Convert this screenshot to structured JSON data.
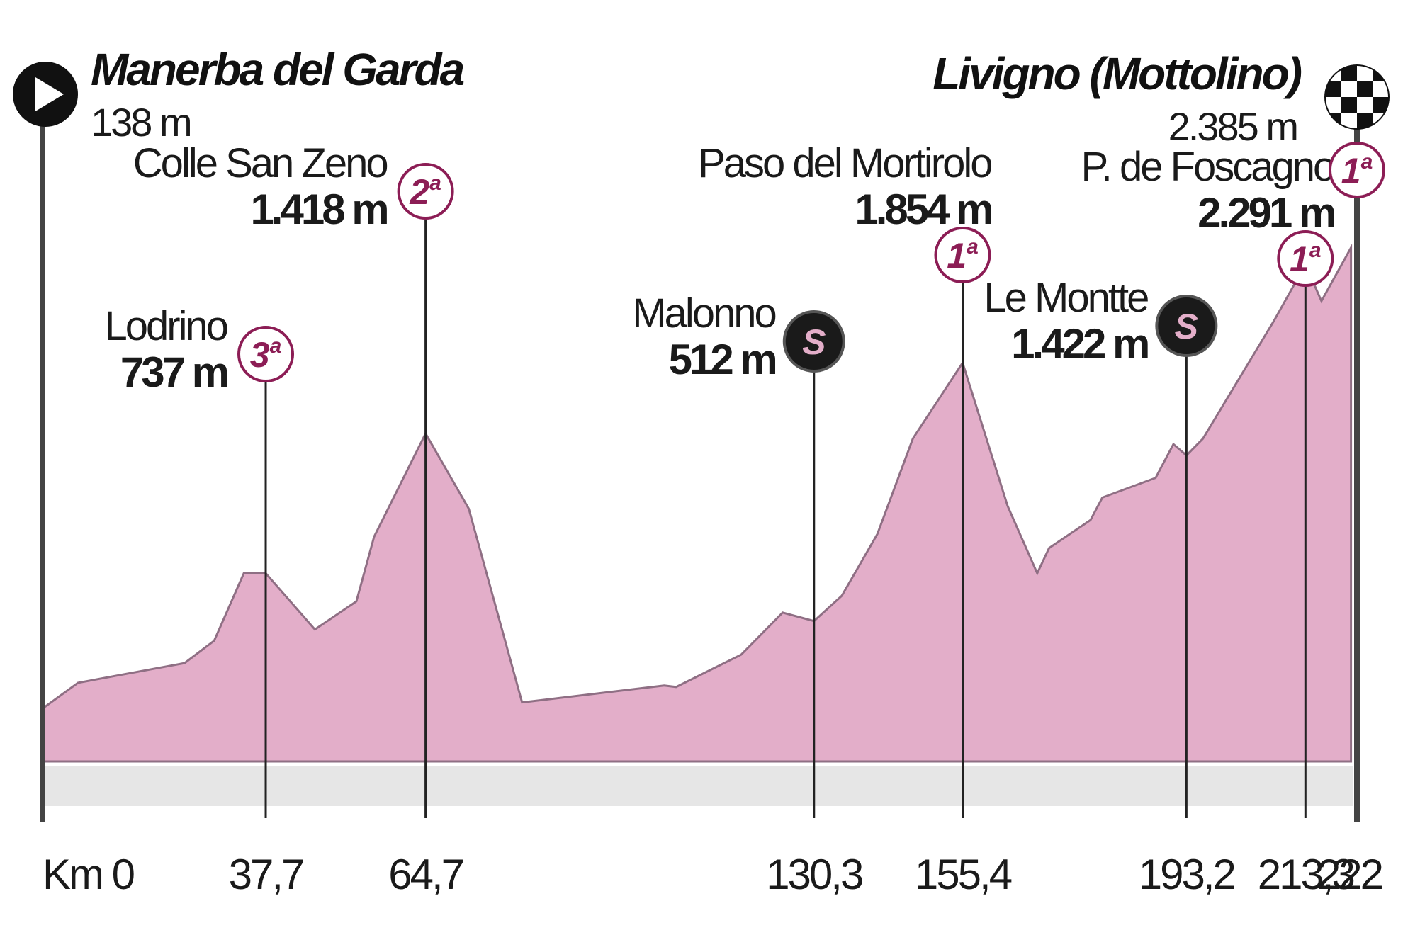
{
  "colors": {
    "profile_fill": "#e3aec9",
    "profile_stroke": "#8f6f84",
    "base_band": "#e6e6e6",
    "category_color": "#8c1d55",
    "sprint_bg": "#1a1a1a",
    "sprint_letter": "#e3aec9",
    "line": "#222222"
  },
  "start": {
    "name": "Manerba del Garda",
    "altitude": "138 m",
    "icon": "play-icon"
  },
  "finish": {
    "name": "Livigno (Mottolino)",
    "altitude": "2.385 m",
    "icon": "checkered-flag-icon",
    "category": "1",
    "ordinal": "a"
  },
  "chart_data": {
    "type": "area",
    "x_unit": "km",
    "xlim": [
      0,
      222
    ],
    "x_ticks": [
      "Km 0",
      "37,7",
      "64,7",
      "130,3",
      "155,4",
      "193,2",
      "213,3",
      "222"
    ],
    "profile": [
      [
        0,
        138
      ],
      [
        6,
        230
      ],
      [
        24,
        300
      ],
      [
        29,
        380
      ],
      [
        34,
        620
      ],
      [
        37.7,
        620
      ],
      [
        46,
        420
      ],
      [
        53,
        520
      ],
      [
        56,
        750
      ],
      [
        64.7,
        1118
      ],
      [
        72,
        850
      ],
      [
        81,
        160
      ],
      [
        105,
        220
      ],
      [
        107,
        215
      ],
      [
        118,
        330
      ],
      [
        125,
        480
      ],
      [
        130.3,
        450
      ],
      [
        135,
        540
      ],
      [
        141,
        760
      ],
      [
        147,
        1100
      ],
      [
        155.4,
        1370
      ],
      [
        163,
        860
      ],
      [
        168,
        620
      ],
      [
        170,
        710
      ],
      [
        177,
        810
      ],
      [
        179,
        890
      ],
      [
        188,
        960
      ],
      [
        191,
        1080
      ],
      [
        193.2,
        1040
      ],
      [
        196,
        1100
      ],
      [
        208,
        1520
      ],
      [
        213.3,
        1720
      ],
      [
        216,
        1590
      ],
      [
        221,
        1780
      ]
    ],
    "points": [
      {
        "km": 37.7,
        "name": "Lodrino",
        "altitude": "737 m",
        "marker": "cat",
        "category": "3",
        "ordinal": "a",
        "label_side": "left",
        "pin_y": 500
      },
      {
        "km": 64.7,
        "name": "Colle San Zeno",
        "altitude": "1.418 m",
        "marker": "cat",
        "category": "2",
        "ordinal": "a",
        "label_side": "left",
        "pin_y": 270
      },
      {
        "km": 130.3,
        "name": "Malonno",
        "altitude": "512 m",
        "marker": "sprint",
        "letter": "S",
        "label_side": "left",
        "pin_y": 482
      },
      {
        "km": 155.4,
        "name": "Paso del Mortirolo",
        "altitude": "1.854 m",
        "marker": "cat",
        "category": "1",
        "ordinal": "a",
        "label_side": "above",
        "pin_y": 360
      },
      {
        "km": 193.2,
        "name": "Le Montte",
        "altitude": "1.422 m",
        "marker": "sprint",
        "letter": "S",
        "label_side": "left",
        "pin_y": 460
      },
      {
        "km": 213.3,
        "name": "P. de Foscagno",
        "altitude": "2.291 m",
        "marker": "cat",
        "category": "1",
        "ordinal": "a",
        "label_side": "above",
        "pin_y": 365
      }
    ]
  }
}
